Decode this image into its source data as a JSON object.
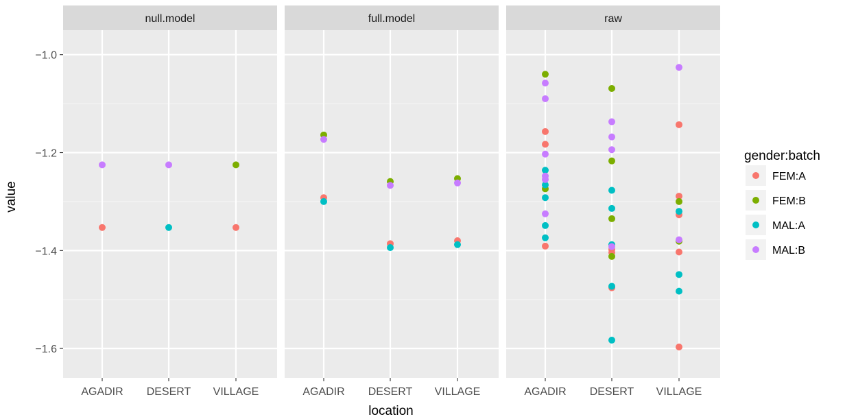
{
  "chart_data": {
    "type": "scatter",
    "xlabel": "location",
    "ylabel": "value",
    "ylim": [
      -1.66,
      -0.95
    ],
    "y_ticks": [
      -1.0,
      -1.2,
      -1.4,
      -1.6
    ],
    "y_tick_labels": [
      "−1.0",
      "−1.2",
      "−1.4",
      "−1.6"
    ],
    "categories": [
      "AGADIR",
      "DESERT",
      "VILLAGE"
    ],
    "panels": [
      "null.model",
      "full.model",
      "raw"
    ],
    "legend": {
      "title": "gender:batch",
      "position": "right",
      "entries": [
        "FEM:A",
        "FEM:B",
        "MAL:A",
        "MAL:B"
      ]
    },
    "colors": {
      "FEM:A": "#F8766D",
      "FEM:B": "#7CAE00",
      "MAL:A": "#00BFC4",
      "MAL:B": "#C77CFF"
    },
    "series": [
      {
        "name": "FEM:A",
        "points": [
          {
            "panel": "null.model",
            "x": "AGADIR",
            "y": -1.353
          },
          {
            "panel": "null.model",
            "x": "VILLAGE",
            "y": -1.353
          },
          {
            "panel": "full.model",
            "x": "AGADIR",
            "y": -1.292
          },
          {
            "panel": "full.model",
            "x": "DESERT",
            "y": -1.386
          },
          {
            "panel": "full.model",
            "x": "VILLAGE",
            "y": -1.38
          },
          {
            "panel": "raw",
            "x": "AGADIR",
            "y": -1.157
          },
          {
            "panel": "raw",
            "x": "AGADIR",
            "y": -1.183
          },
          {
            "panel": "raw",
            "x": "AGADIR",
            "y": -1.391
          },
          {
            "panel": "raw",
            "x": "DESERT",
            "y": -1.398
          },
          {
            "panel": "raw",
            "x": "DESERT",
            "y": -1.404
          },
          {
            "panel": "raw",
            "x": "DESERT",
            "y": -1.476
          },
          {
            "panel": "raw",
            "x": "VILLAGE",
            "y": -1.143
          },
          {
            "panel": "raw",
            "x": "VILLAGE",
            "y": -1.289
          },
          {
            "panel": "raw",
            "x": "VILLAGE",
            "y": -1.327
          },
          {
            "panel": "raw",
            "x": "VILLAGE",
            "y": -1.403
          },
          {
            "panel": "raw",
            "x": "VILLAGE",
            "y": -1.597
          }
        ]
      },
      {
        "name": "FEM:B",
        "points": [
          {
            "panel": "null.model",
            "x": "VILLAGE",
            "y": -1.225
          },
          {
            "panel": "full.model",
            "x": "AGADIR",
            "y": -1.164
          },
          {
            "panel": "full.model",
            "x": "DESERT",
            "y": -1.259
          },
          {
            "panel": "full.model",
            "x": "VILLAGE",
            "y": -1.253
          },
          {
            "panel": "raw",
            "x": "AGADIR",
            "y": -1.04
          },
          {
            "panel": "raw",
            "x": "AGADIR",
            "y": -1.274
          },
          {
            "panel": "raw",
            "x": "DESERT",
            "y": -1.069
          },
          {
            "panel": "raw",
            "x": "DESERT",
            "y": -1.217
          },
          {
            "panel": "raw",
            "x": "DESERT",
            "y": -1.335
          },
          {
            "panel": "raw",
            "x": "DESERT",
            "y": -1.412
          },
          {
            "panel": "raw",
            "x": "VILLAGE",
            "y": -1.3
          },
          {
            "panel": "raw",
            "x": "VILLAGE",
            "y": -1.381
          }
        ]
      },
      {
        "name": "MAL:A",
        "points": [
          {
            "panel": "null.model",
            "x": "DESERT",
            "y": -1.353
          },
          {
            "panel": "full.model",
            "x": "AGADIR",
            "y": -1.3
          },
          {
            "panel": "full.model",
            "x": "DESERT",
            "y": -1.394
          },
          {
            "panel": "full.model",
            "x": "VILLAGE",
            "y": -1.388
          },
          {
            "panel": "raw",
            "x": "AGADIR",
            "y": -1.236
          },
          {
            "panel": "raw",
            "x": "AGADIR",
            "y": -1.266
          },
          {
            "panel": "raw",
            "x": "AGADIR",
            "y": -1.292
          },
          {
            "panel": "raw",
            "x": "AGADIR",
            "y": -1.349
          },
          {
            "panel": "raw",
            "x": "AGADIR",
            "y": -1.374
          },
          {
            "panel": "raw",
            "x": "DESERT",
            "y": -1.277
          },
          {
            "panel": "raw",
            "x": "DESERT",
            "y": -1.314
          },
          {
            "panel": "raw",
            "x": "DESERT",
            "y": -1.388
          },
          {
            "panel": "raw",
            "x": "DESERT",
            "y": -1.473
          },
          {
            "panel": "raw",
            "x": "DESERT",
            "y": -1.583
          },
          {
            "panel": "raw",
            "x": "VILLAGE",
            "y": -1.32
          },
          {
            "panel": "raw",
            "x": "VILLAGE",
            "y": -1.449
          },
          {
            "panel": "raw",
            "x": "VILLAGE",
            "y": -1.483
          }
        ]
      },
      {
        "name": "MAL:B",
        "points": [
          {
            "panel": "null.model",
            "x": "AGADIR",
            "y": -1.225
          },
          {
            "panel": "null.model",
            "x": "DESERT",
            "y": -1.225
          },
          {
            "panel": "full.model",
            "x": "AGADIR",
            "y": -1.173
          },
          {
            "panel": "full.model",
            "x": "DESERT",
            "y": -1.267
          },
          {
            "panel": "full.model",
            "x": "VILLAGE",
            "y": -1.262
          },
          {
            "panel": "raw",
            "x": "AGADIR",
            "y": -1.058
          },
          {
            "panel": "raw",
            "x": "AGADIR",
            "y": -1.09
          },
          {
            "panel": "raw",
            "x": "AGADIR",
            "y": -1.203
          },
          {
            "panel": "raw",
            "x": "AGADIR",
            "y": -1.248
          },
          {
            "panel": "raw",
            "x": "AGADIR",
            "y": -1.255
          },
          {
            "panel": "raw",
            "x": "AGADIR",
            "y": -1.325
          },
          {
            "panel": "raw",
            "x": "DESERT",
            "y": -1.137
          },
          {
            "panel": "raw",
            "x": "DESERT",
            "y": -1.168
          },
          {
            "panel": "raw",
            "x": "DESERT",
            "y": -1.194
          },
          {
            "panel": "raw",
            "x": "DESERT",
            "y": -1.392
          },
          {
            "panel": "raw",
            "x": "VILLAGE",
            "y": -1.026
          },
          {
            "panel": "raw",
            "x": "VILLAGE",
            "y": -1.378
          }
        ]
      }
    ],
    "grid": true,
    "theme": {
      "panel_background": "#EBEBEB",
      "strip_background": "#D9D9D9",
      "gridline_major": "#FFFFFF"
    }
  }
}
